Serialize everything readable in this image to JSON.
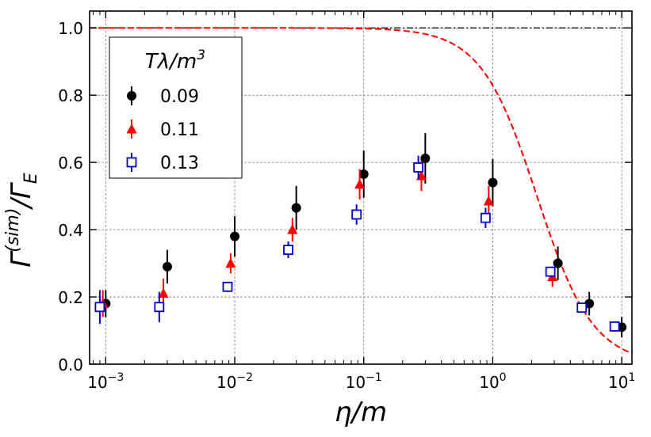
{
  "chart_data": {
    "type": "scatter",
    "xscale": "log",
    "xlim": [
      0.00075,
      12
    ],
    "ylim": [
      0.0,
      1.05
    ],
    "grid": true,
    "xlabel": "η/m",
    "ylabel": {
      "main": "Γ",
      "sup": "(sim)",
      "slash": "/Γ",
      "sub": "E"
    },
    "x_tick_labels": [
      {
        "value": 0.001,
        "base": "10",
        "exp": "−3"
      },
      {
        "value": 0.01,
        "base": "10",
        "exp": "−2"
      },
      {
        "value": 0.1,
        "base": "10",
        "exp": "−1"
      },
      {
        "value": 1,
        "base": "10",
        "exp": "0"
      },
      {
        "value": 10,
        "base": "10",
        "exp": "1"
      }
    ],
    "y_tick_labels": [
      {
        "value": 0.0,
        "label": "0.0"
      },
      {
        "value": 0.2,
        "label": "0.2"
      },
      {
        "value": 0.4,
        "label": "0.4"
      },
      {
        "value": 0.6,
        "label": "0.6"
      },
      {
        "value": 0.8,
        "label": "0.8"
      },
      {
        "value": 1.0,
        "label": "1.0"
      }
    ],
    "legend": {
      "title_main": "Tλ/m",
      "title_sup": "3",
      "placement": "upper-left"
    },
    "series": [
      {
        "name": "0.09",
        "color": "#000000",
        "marker": "circle-filled",
        "points": [
          {
            "x": 0.001,
            "y": 0.18,
            "err": 0.04
          },
          {
            "x": 0.003,
            "y": 0.29,
            "err": 0.05
          },
          {
            "x": 0.01,
            "y": 0.38,
            "err": 0.06
          },
          {
            "x": 0.03,
            "y": 0.465,
            "err": 0.065
          },
          {
            "x": 0.1,
            "y": 0.565,
            "err": 0.07
          },
          {
            "x": 0.3,
            "y": 0.612,
            "err": 0.075
          },
          {
            "x": 1.0,
            "y": 0.54,
            "err": 0.07
          },
          {
            "x": 3.2,
            "y": 0.3,
            "err": 0.05
          },
          {
            "x": 5.6,
            "y": 0.18,
            "err": 0.035
          },
          {
            "x": 10.0,
            "y": 0.11,
            "err": 0.03
          }
        ]
      },
      {
        "name": "0.11",
        "color": "#ff0000",
        "marker": "triangle-filled",
        "points": [
          {
            "x": 0.00095,
            "y": 0.18,
            "err": 0.04
          },
          {
            "x": 0.0028,
            "y": 0.21,
            "err": 0.045
          },
          {
            "x": 0.0093,
            "y": 0.3,
            "err": 0.03
          },
          {
            "x": 0.028,
            "y": 0.4,
            "err": 0.035
          },
          {
            "x": 0.093,
            "y": 0.535,
            "err": 0.045
          },
          {
            "x": 0.28,
            "y": 0.56,
            "err": 0.045
          },
          {
            "x": 0.93,
            "y": 0.485,
            "err": 0.045
          },
          {
            "x": 2.9,
            "y": 0.26,
            "err": 0.03
          }
        ]
      },
      {
        "name": "0.13",
        "color": "#0000cc",
        "marker": "square-open",
        "points": [
          {
            "x": 0.0009,
            "y": 0.17,
            "err": 0.05
          },
          {
            "x": 0.0026,
            "y": 0.17,
            "err": 0.045
          },
          {
            "x": 0.0088,
            "y": 0.23,
            "err": 0.015
          },
          {
            "x": 0.026,
            "y": 0.34,
            "err": 0.025
          },
          {
            "x": 0.088,
            "y": 0.445,
            "err": 0.03
          },
          {
            "x": 0.265,
            "y": 0.585,
            "err": 0.035
          },
          {
            "x": 0.88,
            "y": 0.435,
            "err": 0.03
          },
          {
            "x": 2.8,
            "y": 0.275,
            "err": 0.015
          },
          {
            "x": 4.9,
            "y": 0.168,
            "err": 0.01
          },
          {
            "x": 8.8,
            "y": 0.112,
            "err": 0.008
          }
        ]
      }
    ],
    "reference_lines": [
      {
        "type": "horizontal",
        "y": 1.0,
        "color": "#000000",
        "style": "dashdot"
      },
      {
        "type": "curve",
        "color": "#ff0000",
        "style": "dashed",
        "function": "1/(1+(x/2.2)^2)"
      }
    ]
  }
}
